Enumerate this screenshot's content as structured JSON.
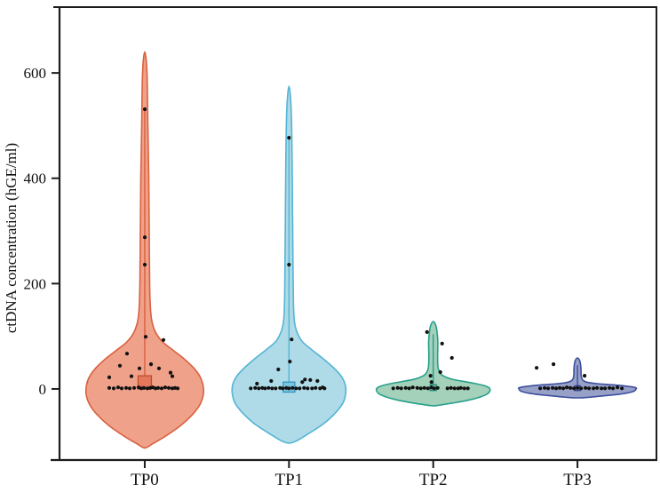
{
  "chart_data": {
    "type": "violin",
    "title": "",
    "xlabel": "",
    "ylabel": "ctDNA concentration (hGE/ml)",
    "categories": [
      "TP0",
      "TP1",
      "TP2",
      "TP3"
    ],
    "y_ticks": [
      0,
      200,
      400,
      600
    ],
    "ylim": [
      -135,
      725
    ],
    "grid": false,
    "legend": "none",
    "frame_color": "#1c1c1c",
    "point_color": "#111111",
    "groups": [
      {
        "name": "TP0",
        "fill": "#efa18a",
        "stroke": "#d96140",
        "box": {
          "w": 15,
          "lo": 0,
          "hi": 25,
          "fill": "#e4785c",
          "stroke": "#c24b2e"
        },
        "whisker_max": 530,
        "profile": [
          [
            640,
            0
          ],
          [
            600,
            2.5
          ],
          [
            500,
            3.5
          ],
          [
            400,
            4.5
          ],
          [
            300,
            5
          ],
          [
            200,
            5.5
          ],
          [
            150,
            6.5
          ],
          [
            125,
            8.5
          ],
          [
            105,
            13
          ],
          [
            88,
            21
          ],
          [
            72,
            33
          ],
          [
            56,
            45
          ],
          [
            40,
            55
          ],
          [
            24,
            62
          ],
          [
            8,
            65.5
          ],
          [
            -10,
            66
          ],
          [
            -30,
            62
          ],
          [
            -50,
            53
          ],
          [
            -70,
            40
          ],
          [
            -90,
            23
          ],
          [
            -104,
            9
          ],
          [
            -112,
            0
          ]
        ],
        "points": [
          [
            0,
            531
          ],
          [
            0,
            288
          ],
          [
            0,
            236
          ],
          [
            1,
            99
          ],
          [
            21,
            93
          ],
          [
            -20,
            67
          ],
          [
            7,
            47
          ],
          [
            -28,
            44
          ],
          [
            -6,
            39
          ],
          [
            16,
            39
          ],
          [
            29,
            31
          ],
          [
            -15,
            24
          ],
          [
            -40,
            22
          ],
          [
            31,
            24
          ],
          [
            -40,
            2
          ],
          [
            -35,
            1
          ],
          [
            -30,
            3
          ],
          [
            -26,
            1
          ],
          [
            -21,
            2
          ],
          [
            -17,
            1
          ],
          [
            -12,
            2
          ],
          [
            -7,
            3
          ],
          [
            -4,
            1
          ],
          [
            -1,
            2
          ],
          [
            3,
            1
          ],
          [
            6,
            2
          ],
          [
            9,
            3
          ],
          [
            12,
            1
          ],
          [
            15,
            2
          ],
          [
            19,
            1
          ],
          [
            23,
            3
          ],
          [
            27,
            2
          ],
          [
            31,
            1
          ],
          [
            34,
            2
          ],
          [
            37,
            1
          ]
        ]
      },
      {
        "name": "TP1",
        "fill": "#afdae8",
        "stroke": "#53b5d3",
        "box": {
          "w": 13,
          "lo": -6,
          "hi": 13,
          "fill": "#7ec6dd",
          "stroke": "#2e97bd"
        },
        "whisker_max": 477,
        "profile": [
          [
            575,
            0
          ],
          [
            530,
            2.5
          ],
          [
            440,
            3.5
          ],
          [
            340,
            4
          ],
          [
            240,
            4.5
          ],
          [
            165,
            5
          ],
          [
            130,
            6
          ],
          [
            108,
            9
          ],
          [
            90,
            15
          ],
          [
            74,
            26
          ],
          [
            58,
            38
          ],
          [
            42,
            49
          ],
          [
            26,
            58
          ],
          [
            10,
            63
          ],
          [
            -6,
            64
          ],
          [
            -26,
            61
          ],
          [
            -46,
            52
          ],
          [
            -66,
            39
          ],
          [
            -86,
            21
          ],
          [
            -99,
            8
          ],
          [
            -103,
            0
          ]
        ],
        "points": [
          [
            0,
            477
          ],
          [
            0,
            236
          ],
          [
            3,
            94
          ],
          [
            1,
            52
          ],
          [
            -12,
            37
          ],
          [
            -20,
            15
          ],
          [
            18,
            18
          ],
          [
            24,
            17
          ],
          [
            15,
            13
          ],
          [
            32,
            15
          ],
          [
            38,
            3
          ],
          [
            -36,
            10
          ],
          [
            -43,
            1
          ],
          [
            -38,
            2
          ],
          [
            -34,
            1
          ],
          [
            -30,
            2
          ],
          [
            -27,
            1
          ],
          [
            -23,
            2
          ],
          [
            -19,
            1
          ],
          [
            -15,
            1
          ],
          [
            -10,
            2
          ],
          [
            -7,
            1
          ],
          [
            -3,
            2
          ],
          [
            0,
            1
          ],
          [
            4,
            2
          ],
          [
            8,
            1
          ],
          [
            12,
            1
          ],
          [
            17,
            2
          ],
          [
            21,
            1
          ],
          [
            26,
            1
          ],
          [
            30,
            2
          ],
          [
            35,
            1
          ],
          [
            40,
            1
          ]
        ]
      },
      {
        "name": "TP2",
        "fill": "#a4d1ba",
        "stroke": "#27a08b",
        "box": {
          "w": 7,
          "lo": -3,
          "hi": 8,
          "fill": "#7abd9e",
          "stroke": "#1d8a74"
        },
        "whisker_max": 104,
        "profile": [
          [
            128,
            0
          ],
          [
            120,
            3
          ],
          [
            105,
            4.5
          ],
          [
            88,
            5.2
          ],
          [
            70,
            5
          ],
          [
            52,
            5
          ],
          [
            40,
            5.5
          ],
          [
            31,
            7.5
          ],
          [
            25,
            11
          ],
          [
            19,
            20
          ],
          [
            14,
            35
          ],
          [
            10,
            48
          ],
          [
            6,
            58
          ],
          [
            2,
            63
          ],
          [
            -2,
            64
          ],
          [
            -8,
            62
          ],
          [
            -14,
            55
          ],
          [
            -20,
            43
          ],
          [
            -26,
            25
          ],
          [
            -30,
            10
          ],
          [
            -32,
            0
          ]
        ],
        "points": [
          [
            -7,
            108
          ],
          [
            10,
            86
          ],
          [
            21,
            59
          ],
          [
            8,
            32
          ],
          [
            -3,
            25
          ],
          [
            -2,
            13
          ],
          [
            -45,
            1
          ],
          [
            -40,
            2
          ],
          [
            -36,
            1
          ],
          [
            -31,
            2
          ],
          [
            -27,
            1
          ],
          [
            -23,
            3
          ],
          [
            -18,
            2
          ],
          [
            -14,
            1
          ],
          [
            -10,
            2
          ],
          [
            -6,
            1
          ],
          [
            -2,
            3
          ],
          [
            1,
            1
          ],
          [
            5,
            2
          ],
          [
            16,
            1
          ],
          [
            20,
            2
          ],
          [
            24,
            1
          ],
          [
            28,
            1
          ],
          [
            31,
            2
          ],
          [
            35,
            1
          ],
          [
            39,
            1
          ]
        ]
      },
      {
        "name": "TP3",
        "fill": "#97a0c6",
        "stroke": "#3d4f9f",
        "box": {
          "w": 6,
          "lo": -3,
          "hi": 6,
          "fill": "#7d88b8",
          "stroke": "#2f4190"
        },
        "whisker_max": 45,
        "profile": [
          [
            59,
            0
          ],
          [
            54,
            2.5
          ],
          [
            46,
            3.5
          ],
          [
            37,
            4
          ],
          [
            29,
            4
          ],
          [
            22,
            4.5
          ],
          [
            17,
            6
          ],
          [
            13,
            10
          ],
          [
            10,
            22
          ],
          [
            8,
            38
          ],
          [
            6,
            52
          ],
          [
            4,
            61
          ],
          [
            2,
            66
          ],
          [
            0,
            66
          ],
          [
            -4,
            64
          ],
          [
            -7,
            58
          ],
          [
            -10,
            47
          ],
          [
            -13,
            30
          ],
          [
            -16,
            12
          ],
          [
            -17,
            0
          ]
        ],
        "points": [
          [
            -46,
            40
          ],
          [
            -27,
            47
          ],
          [
            8,
            25
          ],
          [
            -42,
            1
          ],
          [
            -37,
            2
          ],
          [
            -33,
            1
          ],
          [
            -28,
            2
          ],
          [
            -24,
            1
          ],
          [
            -20,
            2
          ],
          [
            -16,
            1
          ],
          [
            -12,
            3
          ],
          [
            -8,
            2
          ],
          [
            -4,
            1
          ],
          [
            0,
            2
          ],
          [
            4,
            1
          ],
          [
            9,
            2
          ],
          [
            13,
            1
          ],
          [
            18,
            1
          ],
          [
            22,
            2
          ],
          [
            27,
            1
          ],
          [
            31,
            1
          ],
          [
            36,
            2
          ],
          [
            40,
            1
          ],
          [
            45,
            3
          ],
          [
            50,
            1
          ]
        ]
      }
    ]
  }
}
